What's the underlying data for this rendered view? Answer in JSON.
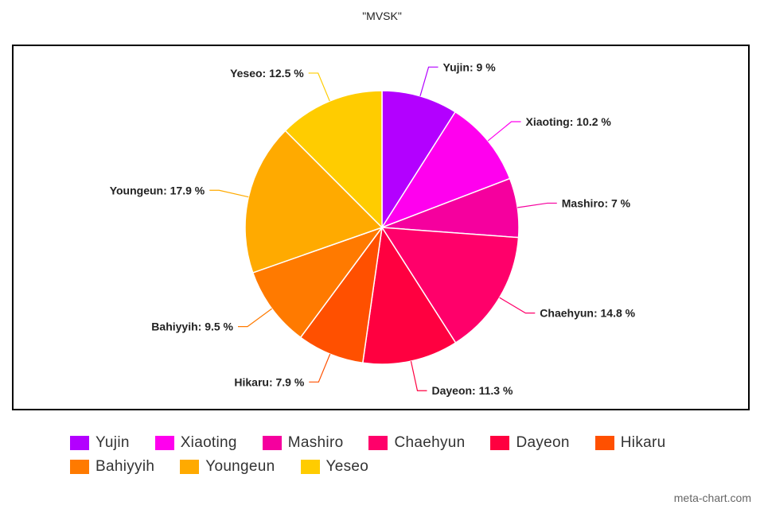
{
  "title": "\"MVSK\"",
  "watermark": "meta-chart.com",
  "chart_data": {
    "type": "pie",
    "title": "\"MVSK\"",
    "unit": "%",
    "legend_position": "bottom",
    "slices": [
      {
        "label": "Yujin",
        "value": 9,
        "color": "#b300ff"
      },
      {
        "label": "Xiaoting",
        "value": 10.2,
        "color": "#ff00ee"
      },
      {
        "label": "Mashiro",
        "value": 7,
        "color": "#f5009e"
      },
      {
        "label": "Chaehyun",
        "value": 14.8,
        "color": "#ff006a"
      },
      {
        "label": "Dayeon",
        "value": 11.3,
        "color": "#ff0040"
      },
      {
        "label": "Hikaru",
        "value": 7.9,
        "color": "#ff5000"
      },
      {
        "label": "Bahiyyih",
        "value": 9.5,
        "color": "#ff7a00"
      },
      {
        "label": "Youngeun",
        "value": 17.9,
        "color": "#ffaa00"
      },
      {
        "label": "Yeseo",
        "value": 12.5,
        "color": "#ffcc00"
      }
    ]
  }
}
